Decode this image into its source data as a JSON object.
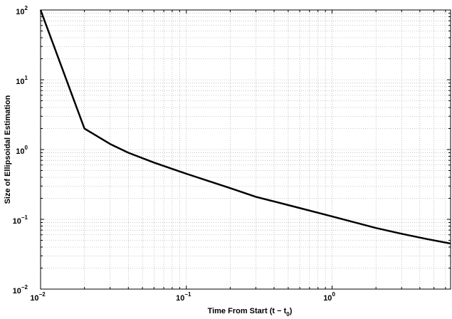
{
  "chart_data": {
    "type": "line",
    "title": "",
    "xlabel": "Time From Start (t − t",
    "xlabel_sub": "0",
    "xlabel_close": ")",
    "ylabel": "Size of Ellipsoidal Estimation",
    "xscale": "log",
    "yscale": "log",
    "xlim": [
      0.01,
      6.5
    ],
    "ylim": [
      0.01,
      100
    ],
    "grid": true,
    "legend": "none",
    "x_ticks": [
      {
        "base": "10",
        "exp": "−2",
        "value": 0.01
      },
      {
        "base": "10",
        "exp": "−1",
        "value": 0.1
      },
      {
        "base": "10",
        "exp": "0",
        "value": 1
      }
    ],
    "y_ticks": [
      {
        "base": "10",
        "exp": "−2",
        "value": 0.01
      },
      {
        "base": "10",
        "exp": "−1",
        "value": 0.1
      },
      {
        "base": "10",
        "exp": "0",
        "value": 1
      },
      {
        "base": "10",
        "exp": "1",
        "value": 10
      },
      {
        "base": "10",
        "exp": "2",
        "value": 100
      }
    ],
    "series": [
      {
        "color": "#000000",
        "x": [
          0.01,
          0.02,
          0.03,
          0.04,
          0.06,
          0.1,
          0.2,
          0.3,
          0.5,
          1,
          2,
          3,
          4.5,
          6.5
        ],
        "y": [
          100,
          2.0,
          1.2,
          0.9,
          0.65,
          0.45,
          0.28,
          0.21,
          0.16,
          0.11,
          0.075,
          0.062,
          0.052,
          0.045
        ]
      }
    ]
  }
}
